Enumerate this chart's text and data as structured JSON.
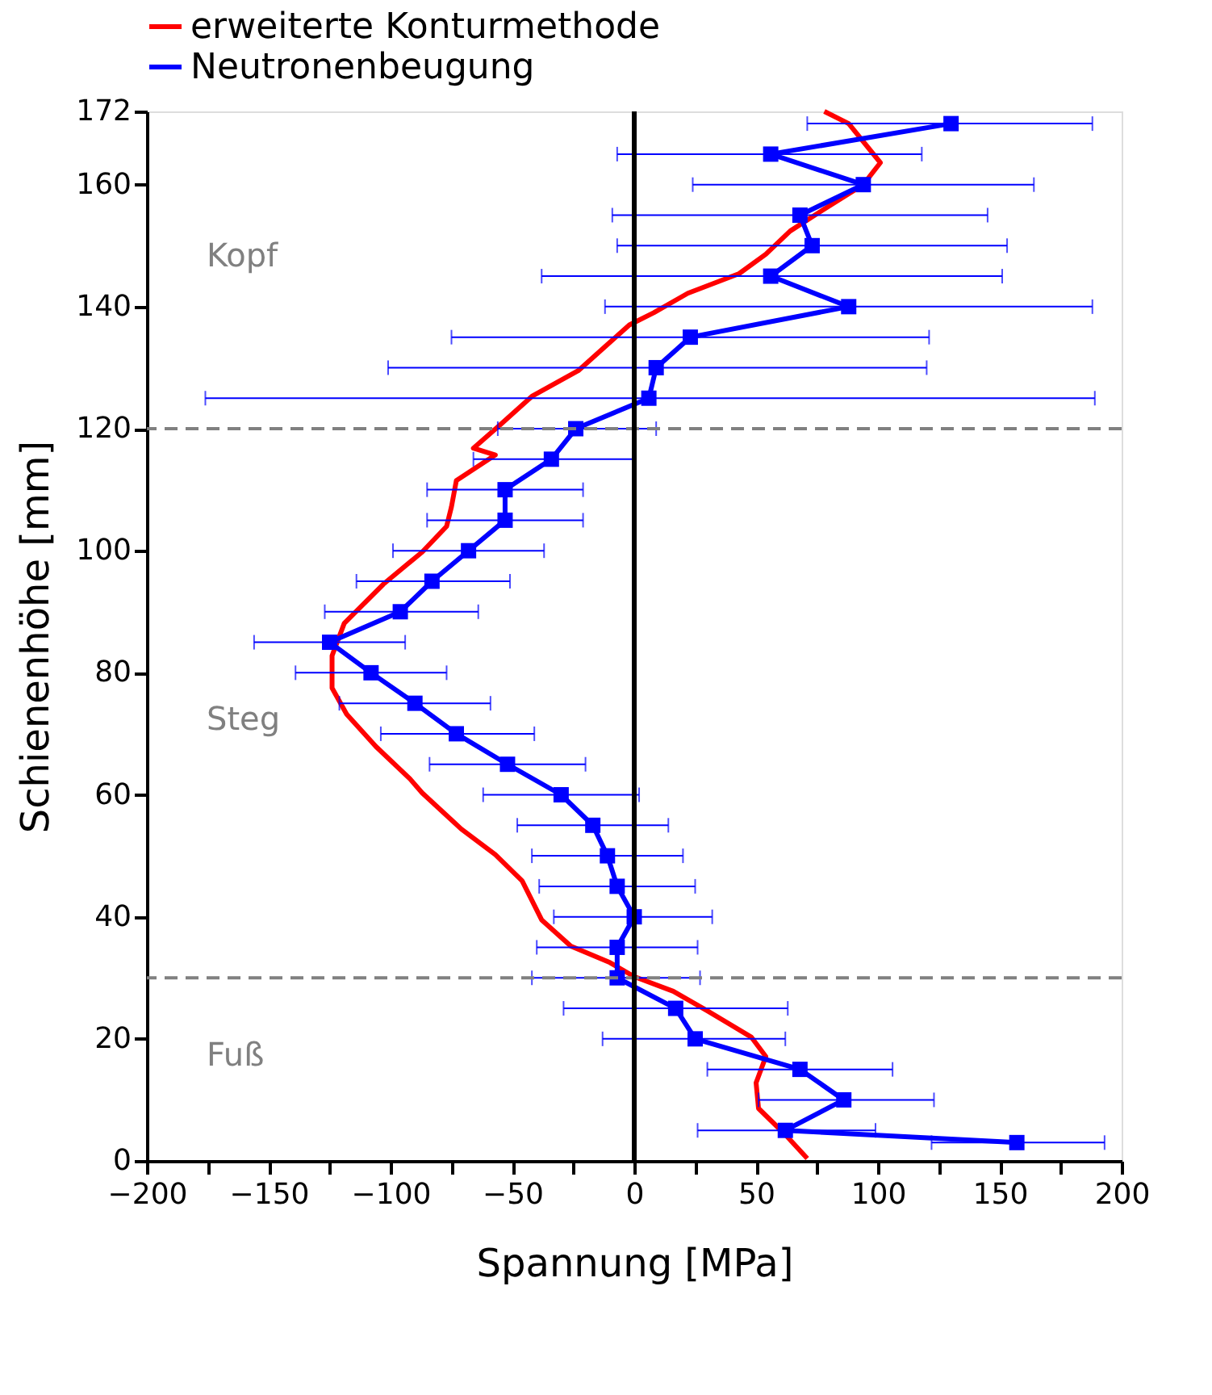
{
  "chart_data": {
    "type": "line",
    "xlabel": "Spannung [MPa]",
    "ylabel": "Schienenhöhe [mm]",
    "xlim": [
      -200,
      200
    ],
    "xticks": [
      -200,
      {
        "value": -175,
        "label": null
      },
      -150,
      {
        "value": -125,
        "label": null
      },
      -100,
      {
        "value": -75,
        "label": null
      },
      -50,
      {
        "value": -25,
        "label": null
      },
      0,
      {
        "value": 25,
        "label": null
      },
      50,
      {
        "value": 75,
        "label": null
      },
      100,
      {
        "value": 125,
        "label": null
      },
      150,
      {
        "value": 175,
        "label": null
      },
      200
    ],
    "ylim": [
      0,
      172
    ],
    "yticks": [
      0,
      20,
      40,
      60,
      80,
      100,
      120,
      140,
      160,
      172
    ],
    "grid": false,
    "legend": "top",
    "series": [
      {
        "name": "erweiterte Konturmethode",
        "color": "#ff0000",
        "type": "line",
        "marker": "none",
        "line_style": "solid",
        "x": [
          78,
          88,
          101,
          94,
          78,
          64,
          54,
          43,
          22,
          8,
          -2,
          -11,
          -23,
          -42,
          -54,
          -66,
          -57,
          -73,
          -75,
          -77,
          -87,
          -103,
          -119,
          -124,
          -124,
          -118,
          -106,
          -92,
          -87,
          -71,
          -57,
          -46,
          -38,
          -26,
          -10,
          0,
          16,
          30,
          48,
          54,
          50,
          51,
          62,
          71
        ],
        "values": [
          172,
          170,
          163.6,
          160,
          156,
          152.4,
          148.6,
          145.4,
          142.2,
          139,
          137,
          133.8,
          129.5,
          125.3,
          121,
          116.8,
          115.7,
          111.5,
          107.2,
          104,
          99.8,
          94.5,
          88.1,
          82.8,
          77.5,
          73.2,
          67.9,
          62.6,
          60.3,
          54.4,
          50.2,
          45.9,
          39.5,
          35.2,
          32.5,
          30.2,
          27.8,
          24.6,
          20.3,
          17.1,
          12.8,
          8.6,
          4.3,
          0.4
        ]
      },
      {
        "name": "Neutronenbeugung",
        "color": "#0000ff",
        "type": "line",
        "marker": "square",
        "line_style": "solid",
        "x": [
          130,
          56,
          94,
          68,
          73,
          56,
          88,
          23,
          9,
          6,
          -24,
          -34,
          -53,
          -53,
          -68,
          -83,
          -96,
          -125,
          -108,
          -90,
          -73,
          -52,
          -30,
          -17,
          -11,
          -7,
          0,
          -7,
          -7,
          17,
          25,
          68,
          86,
          62,
          157
        ],
        "values": [
          170,
          165,
          160,
          155,
          150,
          145,
          140,
          135,
          130,
          125,
          120,
          115,
          110,
          105,
          100,
          95,
          90,
          85,
          80,
          75,
          70,
          65,
          60,
          55,
          50,
          45,
          40,
          35,
          30,
          25,
          20,
          15,
          10,
          5,
          3
        ],
        "xerrors": [
          [
            71,
            188
          ],
          [
            -7,
            118
          ],
          [
            24,
            164
          ],
          [
            -9,
            145
          ],
          [
            -7,
            153
          ],
          [
            -38,
            151
          ],
          [
            -12,
            188
          ],
          [
            -75,
            121
          ],
          [
            -101,
            120
          ],
          [
            -176,
            189
          ],
          [
            -56,
            9
          ],
          [
            -66,
            0
          ],
          [
            -85,
            -21
          ],
          [
            -85,
            -21
          ],
          [
            -99,
            -37
          ],
          [
            -114,
            -51
          ],
          [
            -127,
            -64
          ],
          [
            -156,
            -94
          ],
          [
            -139,
            -77
          ],
          [
            -121,
            -59
          ],
          [
            -104,
            -41
          ],
          [
            -84,
            -20
          ],
          [
            -62,
            2
          ],
          [
            -48,
            14
          ],
          [
            -42,
            20
          ],
          [
            -39,
            25
          ],
          [
            -33,
            32
          ],
          [
            -40,
            26
          ],
          [
            -42,
            27
          ],
          [
            -29,
            63
          ],
          [
            -13,
            62
          ],
          [
            30,
            106
          ],
          [
            51,
            123
          ],
          [
            26,
            99
          ],
          [
            122,
            193
          ]
        ]
      }
    ],
    "ref_lines": [
      {
        "axis": "y",
        "value": 30,
        "color": "#808080",
        "line_style": "dashed"
      },
      {
        "axis": "y",
        "value": 120,
        "color": "#808080",
        "line_style": "dashed"
      },
      {
        "axis": "x",
        "value": 0,
        "color": "#000000",
        "line_style": "solid"
      }
    ],
    "annotations": [
      "Kopf",
      "Steg",
      "Fuß"
    ]
  }
}
